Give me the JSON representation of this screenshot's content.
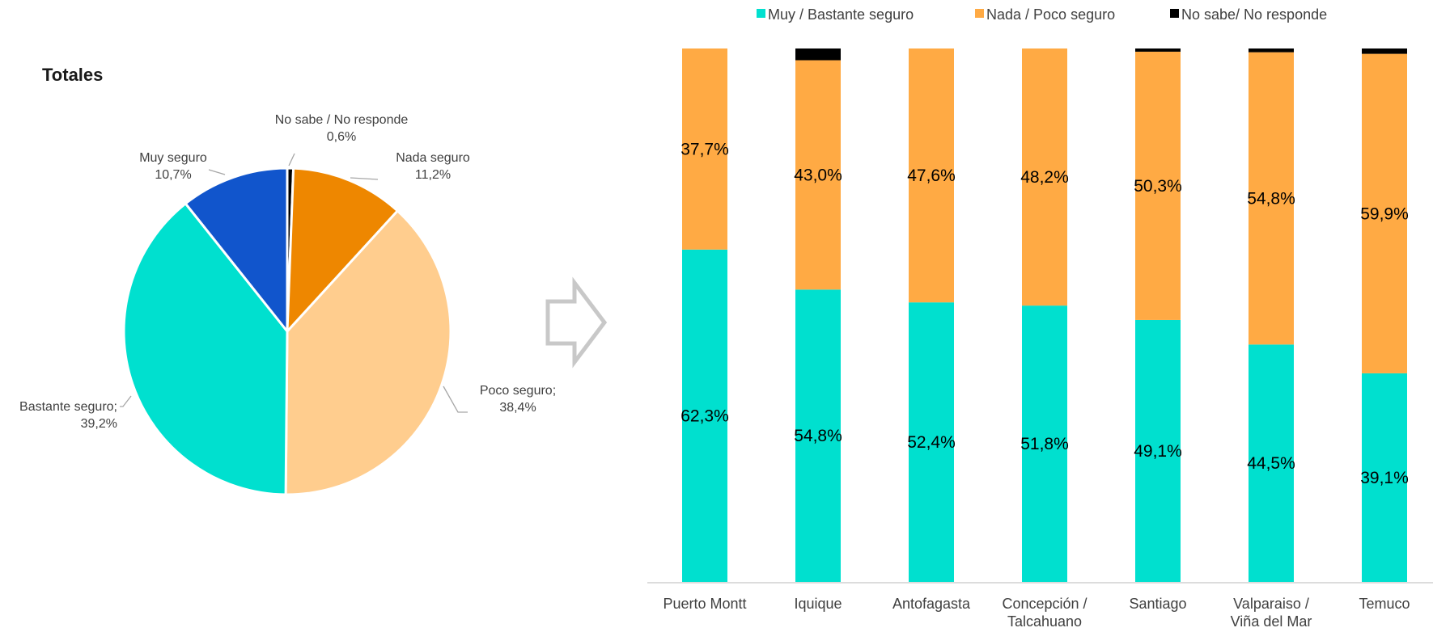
{
  "chart_data": [
    {
      "type": "pie",
      "title": "Totales",
      "slices": [
        {
          "label": "No sabe / No responde",
          "value": 0.6,
          "value_text": "0,6%",
          "color": "#000000"
        },
        {
          "label": "Nada seguro",
          "value": 11.2,
          "value_text": "11,2%",
          "color": "#EE8700"
        },
        {
          "label": "Poco seguro;",
          "value": 38.4,
          "value_text": "38,4%",
          "color": "#FFCD8E"
        },
        {
          "label": "Bastante seguro;",
          "value": 39.2,
          "value_text": "39,2%",
          "color": "#00E0CF"
        },
        {
          "label": "Muy seguro",
          "value": 10.7,
          "value_text": "10,7%",
          "color": "#1155CC"
        }
      ]
    },
    {
      "type": "bar",
      "stacked": true,
      "orientation": "vertical",
      "legend_position": "top",
      "categories": [
        [
          "Puerto Montt"
        ],
        [
          "Iquique"
        ],
        [
          "Antofagasta"
        ],
        [
          "Concepción /",
          "Talcahuano"
        ],
        [
          "Santiago"
        ],
        [
          "Valparaiso /",
          "Viña del Mar"
        ],
        [
          "Temuco"
        ]
      ],
      "series": [
        {
          "name": "Muy / Bastante seguro",
          "color": "#00E0CF",
          "values": [
            62.3,
            54.8,
            52.4,
            51.8,
            49.1,
            44.5,
            39.1
          ],
          "labels": [
            "62,3%",
            "54,8%",
            "52,4%",
            "51,8%",
            "49,1%",
            "44,5%",
            "39,1%"
          ]
        },
        {
          "name": "Nada / Poco seguro",
          "color": "#FFAA44",
          "values": [
            37.7,
            43.0,
            47.6,
            48.2,
            50.3,
            54.8,
            59.9
          ],
          "labels": [
            "37,7%",
            "43,0%",
            "47,6%",
            "48,2%",
            "50,3%",
            "54,8%",
            "59,9%"
          ]
        },
        {
          "name": "No sabe/ No responde",
          "color": "#000000",
          "values": [
            0.0,
            2.2,
            0.0,
            0.0,
            0.6,
            0.7,
            1.0
          ],
          "labels": [
            "",
            "",
            "",
            "",
            "",
            "",
            ""
          ]
        }
      ],
      "ylim": [
        0,
        100
      ]
    }
  ]
}
